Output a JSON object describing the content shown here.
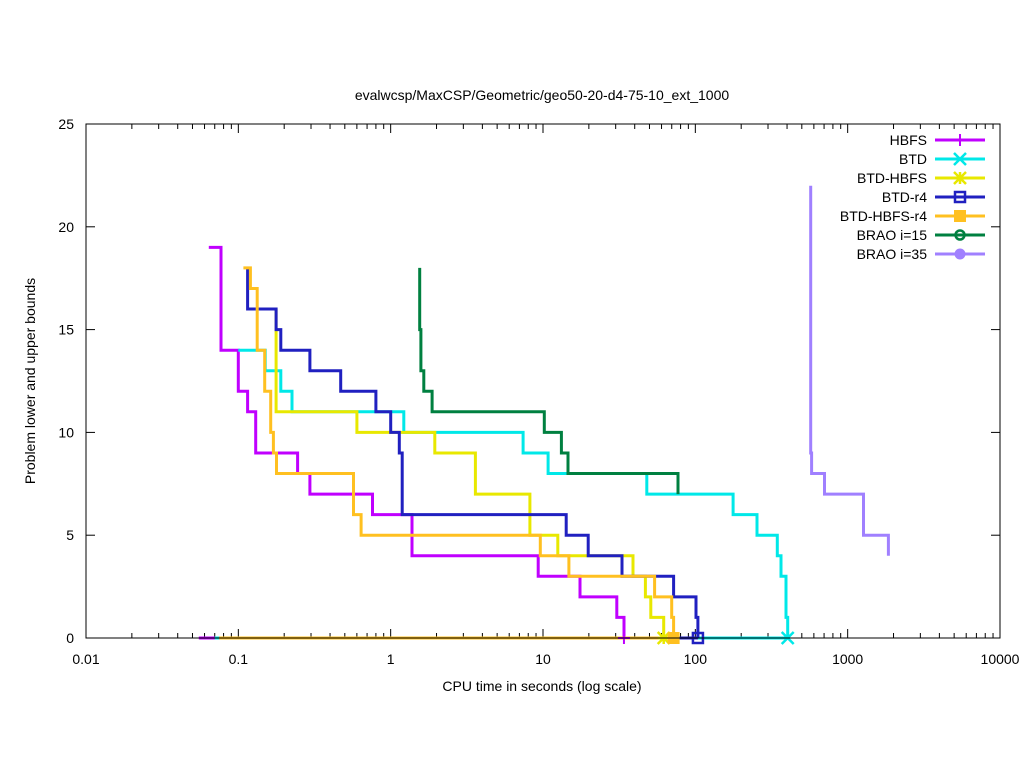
{
  "chart_data": {
    "type": "line",
    "title": "evalwcsp/MaxCSP/Geometric/geo50-20-d4-75-10_ext_1000",
    "xlabel": "CPU time in seconds (log scale)",
    "ylabel": "Problem lower and upper bounds",
    "xscale": "log",
    "xlim": [
      0.01,
      10000
    ],
    "ylim": [
      0,
      25
    ],
    "xticks": [
      0.01,
      0.1,
      1,
      10,
      100,
      1000,
      10000
    ],
    "xtick_labels": [
      "0.01",
      "0.1",
      "1",
      "10",
      "100",
      "1000",
      "10000"
    ],
    "yticks": [
      0,
      5,
      10,
      15,
      20,
      25
    ],
    "ytick_labels": [
      "0",
      "5",
      "10",
      "15",
      "20",
      "25"
    ],
    "grid": false,
    "legend_position": "top-right",
    "series": [
      {
        "name": "HBFS",
        "color": "#c000ff",
        "marker": "plus",
        "upper": [
          [
            0.064,
            19
          ],
          [
            0.077,
            19
          ],
          [
            0.077,
            14
          ],
          [
            0.1,
            14
          ],
          [
            0.1,
            12
          ],
          [
            0.115,
            12
          ],
          [
            0.115,
            11
          ],
          [
            0.13,
            11
          ],
          [
            0.13,
            9
          ],
          [
            0.245,
            9
          ],
          [
            0.245,
            8
          ],
          [
            0.295,
            8
          ],
          [
            0.295,
            7
          ],
          [
            0.76,
            7
          ],
          [
            0.76,
            6
          ],
          [
            1.38,
            6
          ],
          [
            1.38,
            4
          ],
          [
            9.3,
            4
          ],
          [
            9.3,
            3
          ],
          [
            17.5,
            3
          ],
          [
            17.5,
            2
          ],
          [
            30.5,
            2
          ],
          [
            30.5,
            1
          ],
          [
            34,
            1
          ],
          [
            34,
            0
          ]
        ],
        "lower": [
          [
            0.055,
            0
          ],
          [
            34,
            0
          ]
        ],
        "end": [
          34,
          0
        ]
      },
      {
        "name": "BTD",
        "color": "#00e8e8",
        "marker": "x",
        "upper": [
          [
            0.1,
            14
          ],
          [
            0.15,
            14
          ],
          [
            0.15,
            13
          ],
          [
            0.19,
            13
          ],
          [
            0.19,
            12
          ],
          [
            0.225,
            12
          ],
          [
            0.225,
            11
          ],
          [
            1.22,
            11
          ],
          [
            1.22,
            10
          ],
          [
            7.4,
            10
          ],
          [
            7.4,
            9
          ],
          [
            10.8,
            9
          ],
          [
            10.8,
            8
          ],
          [
            48,
            8
          ],
          [
            48,
            7
          ],
          [
            177,
            7
          ],
          [
            177,
            6
          ],
          [
            254,
            6
          ],
          [
            254,
            5
          ],
          [
            345,
            5
          ],
          [
            345,
            4
          ],
          [
            365,
            4
          ],
          [
            365,
            3
          ],
          [
            394,
            3
          ],
          [
            394,
            1
          ],
          [
            404,
            1
          ],
          [
            404,
            0
          ]
        ],
        "lower": [
          [
            0.07,
            0
          ],
          [
            404,
            0
          ]
        ],
        "end": [
          404,
          0
        ]
      },
      {
        "name": "BTD-HBFS",
        "color": "#e8e800",
        "marker": "star",
        "upper": [
          [
            0.177,
            16
          ],
          [
            0.177,
            11
          ],
          [
            0.6,
            11
          ],
          [
            0.6,
            10
          ],
          [
            1.95,
            10
          ],
          [
            1.95,
            9
          ],
          [
            3.6,
            9
          ],
          [
            3.6,
            7
          ],
          [
            8.2,
            7
          ],
          [
            8.2,
            5
          ],
          [
            12.5,
            5
          ],
          [
            12.5,
            4
          ],
          [
            39,
            4
          ],
          [
            39,
            3
          ],
          [
            47,
            3
          ],
          [
            47,
            2
          ],
          [
            51,
            2
          ],
          [
            51,
            1
          ],
          [
            62,
            1
          ],
          [
            62,
            0
          ]
        ],
        "lower": [
          [
            0.075,
            0
          ],
          [
            62,
            0
          ]
        ],
        "end": [
          62,
          0
        ]
      },
      {
        "name": "BTD-r4",
        "color": "#2020c0",
        "marker": "box",
        "upper": [
          [
            0.115,
            18
          ],
          [
            0.115,
            16
          ],
          [
            0.177,
            16
          ],
          [
            0.177,
            15
          ],
          [
            0.19,
            15
          ],
          [
            0.19,
            14
          ],
          [
            0.295,
            14
          ],
          [
            0.295,
            13
          ],
          [
            0.47,
            13
          ],
          [
            0.47,
            12
          ],
          [
            0.8,
            12
          ],
          [
            0.8,
            11
          ],
          [
            1.0,
            11
          ],
          [
            1.0,
            10
          ],
          [
            1.14,
            10
          ],
          [
            1.14,
            9
          ],
          [
            1.19,
            9
          ],
          [
            1.19,
            6
          ],
          [
            14.2,
            6
          ],
          [
            14.2,
            5
          ],
          [
            19.8,
            5
          ],
          [
            19.8,
            4
          ],
          [
            33,
            4
          ],
          [
            33,
            3
          ],
          [
            72,
            3
          ],
          [
            72,
            2
          ],
          [
            101,
            2
          ],
          [
            101,
            1
          ],
          [
            104,
            1
          ],
          [
            104,
            0
          ]
        ],
        "lower": [
          [
            0.075,
            0
          ],
          [
            104,
            0
          ]
        ],
        "end": [
          104,
          0
        ]
      },
      {
        "name": "BTD-HBFS-r4",
        "color": "#ffc020",
        "marker": "filled-box",
        "upper": [
          [
            0.108,
            18
          ],
          [
            0.12,
            18
          ],
          [
            0.12,
            17
          ],
          [
            0.133,
            17
          ],
          [
            0.133,
            14
          ],
          [
            0.149,
            14
          ],
          [
            0.149,
            12
          ],
          [
            0.163,
            12
          ],
          [
            0.163,
            10
          ],
          [
            0.17,
            10
          ],
          [
            0.17,
            9
          ],
          [
            0.178,
            9
          ],
          [
            0.178,
            8
          ],
          [
            0.57,
            8
          ],
          [
            0.57,
            6
          ],
          [
            0.64,
            6
          ],
          [
            0.64,
            5
          ],
          [
            9.6,
            5
          ],
          [
            9.6,
            4
          ],
          [
            14.8,
            4
          ],
          [
            14.8,
            3
          ],
          [
            54,
            3
          ],
          [
            54,
            2
          ],
          [
            70,
            2
          ],
          [
            70,
            1
          ],
          [
            72,
            1
          ],
          [
            72,
            0
          ]
        ],
        "lower": [
          [
            0.075,
            0
          ],
          [
            72,
            0
          ]
        ],
        "end": [
          72,
          0
        ]
      },
      {
        "name": "BRAO i=15",
        "color": "#008040",
        "marker": "circle",
        "upper": [
          [
            1.55,
            18
          ],
          [
            1.55,
            15
          ],
          [
            1.58,
            15
          ],
          [
            1.58,
            13
          ],
          [
            1.65,
            13
          ],
          [
            1.65,
            12
          ],
          [
            1.87,
            12
          ],
          [
            1.87,
            11
          ],
          [
            10.2,
            11
          ],
          [
            10.2,
            10
          ],
          [
            13.2,
            10
          ],
          [
            13.2,
            9
          ],
          [
            14.6,
            9
          ],
          [
            14.6,
            8
          ],
          [
            77,
            8
          ],
          [
            77,
            7
          ]
        ],
        "lower": [],
        "end": null
      },
      {
        "name": "BRAO i=35",
        "color": "#a080ff",
        "marker": "filled-circle",
        "upper": [
          [
            572,
            22
          ],
          [
            572,
            9
          ],
          [
            580,
            9
          ],
          [
            580,
            8
          ],
          [
            705,
            8
          ],
          [
            705,
            7
          ],
          [
            1270,
            7
          ],
          [
            1270,
            5
          ],
          [
            1850,
            5
          ],
          [
            1850,
            4
          ]
        ],
        "lower": [],
        "end": null
      }
    ]
  }
}
